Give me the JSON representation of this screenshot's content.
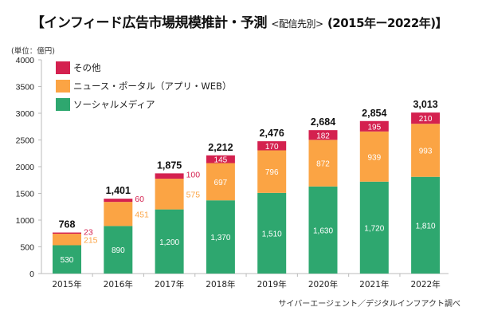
{
  "chart_data": {
    "type": "bar",
    "stacked": true,
    "title": "【インフィード広告市場規模推計・予測",
    "title_sub": "<配信先別>",
    "title_years": "(2015年ー2022年)】",
    "unit_label": "(単位：億円)",
    "source": "サイバーエージェント／デジタルインフアクト調べ",
    "categories": [
      "2015年",
      "2016年",
      "2017年",
      "2018年",
      "2019年",
      "2020年",
      "2021年",
      "2022年"
    ],
    "ylim": [
      0,
      4000
    ],
    "yticks": [
      0,
      500,
      1000,
      1500,
      2000,
      2500,
      3000,
      3500,
      4000
    ],
    "series": [
      {
        "name": "ソーシャルメディア",
        "color": "#2ea76f",
        "values": [
          530,
          890,
          1200,
          1370,
          1510,
          1630,
          1720,
          1810
        ],
        "labels": [
          "530",
          "890",
          "1,200",
          "1,370",
          "1,510",
          "1,630",
          "1,720",
          "1,810"
        ]
      },
      {
        "name": "ニュース・ポータル（アプリ・WEB）",
        "color": "#fba444",
        "values": [
          215,
          451,
          575,
          697,
          796,
          872,
          939,
          993
        ],
        "labels": [
          "215",
          "451",
          "575",
          "697",
          "796",
          "872",
          "939",
          "993"
        ]
      },
      {
        "name": "その他",
        "color": "#d4214f",
        "values": [
          23,
          60,
          100,
          145,
          170,
          182,
          195,
          210
        ],
        "labels": [
          "23",
          "60",
          "100",
          "145",
          "170",
          "182",
          "195",
          "210"
        ]
      }
    ],
    "totals": [
      "768",
      "1,401",
      "1,875",
      "2,212",
      "2,476",
      "2,684",
      "2,854",
      "3,013"
    ],
    "outside_labels_years": [
      "2015年",
      "2016年",
      "2017年"
    ],
    "legend_order": [
      "その他",
      "ニュース・ポータル（アプリ・WEB）",
      "ソーシャルメディア"
    ],
    "legend_position": "top-left",
    "grid": false
  },
  "legend": {
    "items": [
      {
        "label": "その他",
        "color": "#d4214f"
      },
      {
        "label": "ニュース・ポータル（アプリ・WEB）",
        "color": "#fba444"
      },
      {
        "label": "ソーシャルメディア",
        "color": "#2ea76f"
      }
    ]
  }
}
